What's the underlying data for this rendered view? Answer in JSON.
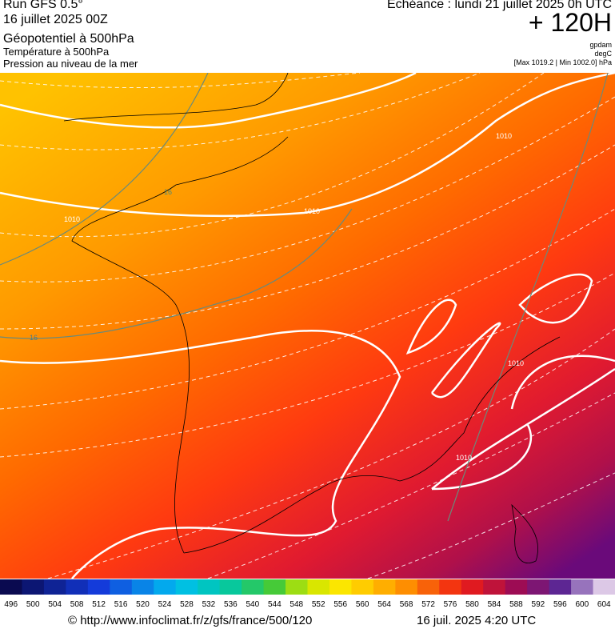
{
  "header": {
    "run": "Run GFS 0.5°",
    "date": "16 juillet 2025 00Z",
    "field": "Géopotentiel à 500hPa",
    "temp": "Température à 500hPa",
    "pressure": "Pression au niveau de la mer",
    "echeance": "Echéance : lundi 21 juillet 2025 0h UTC",
    "lead": "+ 120H",
    "unit1": "gpdam",
    "unit2": "degC",
    "range": "[Max 1019.2 | Min 1002.0] hPa"
  },
  "map": {
    "contour_labels": [
      "1010",
      "1010",
      "1010",
      "1010",
      "1010",
      "16",
      "16"
    ]
  },
  "legend": {
    "labels": [
      496,
      500,
      504,
      508,
      512,
      516,
      520,
      524,
      528,
      532,
      536,
      540,
      544,
      548,
      552,
      556,
      560,
      564,
      568,
      572,
      576,
      580,
      584,
      588,
      592,
      596,
      600,
      604
    ]
  },
  "footer": {
    "source": "© http://www.infoclimat.fr/z/gfs/france/500/120",
    "timestamp": "16 juil. 2025  4:20 UTC"
  }
}
